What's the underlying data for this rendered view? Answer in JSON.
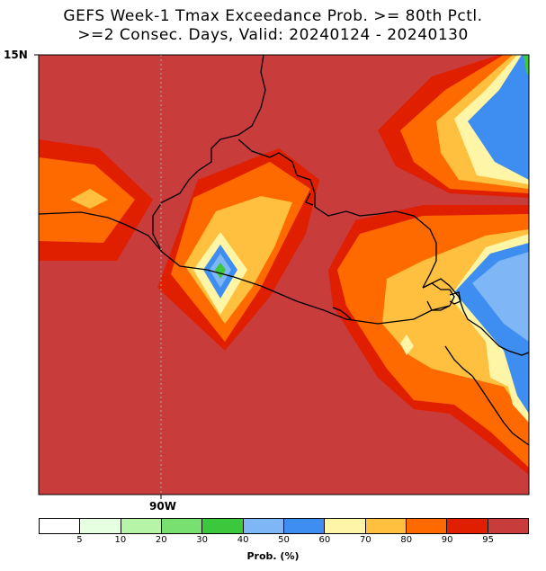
{
  "title": {
    "line1": "GEFS Week-1 Tmax Exceedance Prob. >= 80th Pctl.",
    "line2": ">=2 Consec. Days, Valid: 20240124 - 20240130"
  },
  "axes": {
    "lat_label": "15N",
    "lon_label": "90W"
  },
  "colorbar": {
    "title": "Prob. (%)",
    "colors": [
      "#ffffff",
      "#e6ffe0",
      "#b6f5a8",
      "#78e070",
      "#3cc83c",
      "#7eb6f6",
      "#3d8ef0",
      "#fff5a6",
      "#ffc040",
      "#ff6a00",
      "#e01f00",
      "#c83c3c"
    ],
    "tick_labels": [
      "5",
      "10",
      "20",
      "30",
      "40",
      "50",
      "60",
      "70",
      "80",
      "90",
      "95"
    ]
  },
  "map_colors": {
    "background": "#c83c3c",
    "p90": "#e01f00",
    "p80": "#ff6a00",
    "p70": "#ffc040",
    "p60": "#fff5a6",
    "p50": "#3d8ef0",
    "p40": "#7eb6f6",
    "p30": "#3cc83c",
    "coast": "#000000",
    "meridian": "#aaaaaa"
  }
}
